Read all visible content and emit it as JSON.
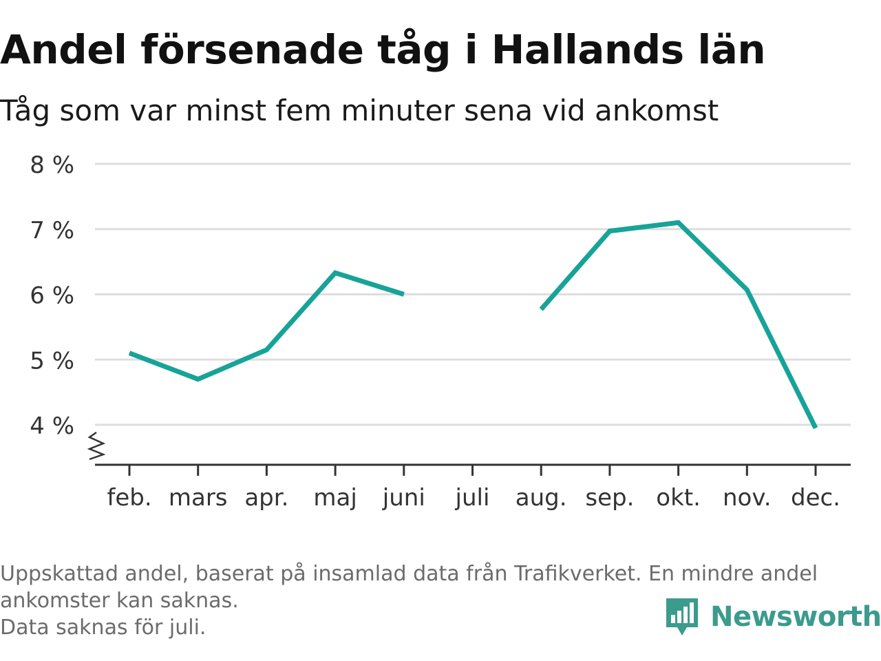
{
  "header": {
    "title": "Andel försenade tåg i Hallands län",
    "subtitle": "Tåg som var minst fem minuter sena vid ankomst"
  },
  "chart_data": {
    "type": "line",
    "categories": [
      "feb.",
      "mars",
      "apr.",
      "maj",
      "juni",
      "juli",
      "aug.",
      "sep.",
      "okt.",
      "nov.",
      "dec."
    ],
    "series": [
      {
        "values": [
          5.1,
          4.7,
          5.15,
          6.33,
          6.0,
          null,
          5.77,
          6.97,
          7.1,
          6.07,
          3.95
        ],
        "color": "#17a398"
      }
    ],
    "ylim": [
      3.4,
      8
    ],
    "yticks": [
      4,
      5,
      6,
      7,
      8
    ],
    "ytick_labels": [
      "4 %",
      "5 %",
      "6 %",
      "7 %",
      "8 %"
    ],
    "grid": true,
    "axis_break": true,
    "gap_color": "#17a398",
    "grid_color": "#dedede",
    "axis_color": "#333333"
  },
  "footer": {
    "note_lines": [
      "Uppskattad andel, baserat på insamlad data från Trafikverket. En mindre andel",
      "ankomster kan saknas.",
      "Data saknas för juli."
    ],
    "brand": "Newsworthy",
    "brand_color": "#3b9b8d",
    "logo_icon": "bar-chart-speech-bubble-icon"
  }
}
